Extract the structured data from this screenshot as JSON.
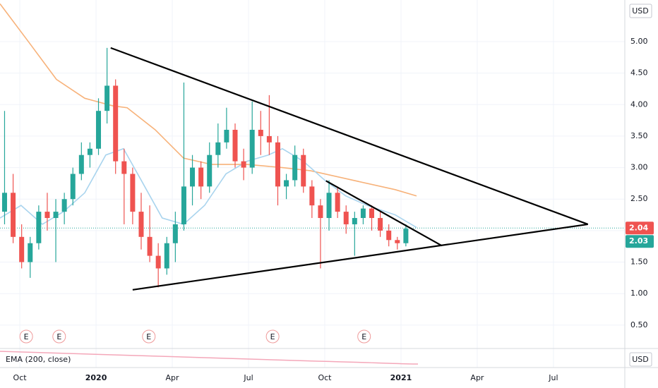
{
  "chart_data": {
    "type": "candlestick",
    "currency": "USD",
    "indicator_label": "EMA (200, close)",
    "up_color": "#26a69a",
    "down_color": "#ef5350",
    "grid": true,
    "xlim": [
      2019.685,
      2021.734
    ],
    "ylim": [
      0.14,
      5.66
    ],
    "xticks": [
      {
        "value": 2019.75,
        "label": "Oct"
      },
      2020,
      {
        "value": 2020.25,
        "label": "Apr"
      },
      {
        "value": 2020.5,
        "label": "Jul"
      },
      {
        "value": 2020.75,
        "label": "Oct"
      },
      2021,
      {
        "value": 2021.25,
        "label": "Apr"
      },
      {
        "value": 2021.5,
        "label": "Jul"
      }
    ],
    "yticks": [
      {
        "value": 0.5,
        "label": "0.50"
      },
      {
        "value": 1,
        "label": "1.00"
      },
      {
        "value": 1.5,
        "label": "1.50"
      },
      {
        "value": 2,
        "label": "2.00"
      },
      {
        "value": 2.5,
        "label": "2.50"
      },
      {
        "value": 3,
        "label": "3.00"
      },
      {
        "value": 3.5,
        "label": "3.50"
      },
      {
        "value": 4,
        "label": "4.00"
      },
      {
        "value": 4.5,
        "label": "4.50"
      },
      {
        "value": 5,
        "label": "5.00"
      }
    ],
    "x": [
      2019.7,
      2019.728,
      2019.756,
      2019.784,
      2019.812,
      2019.84,
      2019.868,
      2019.896,
      2019.924,
      2019.952,
      2019.98,
      2020.008,
      2020.036,
      2020.064,
      2020.092,
      2020.12,
      2020.148,
      2020.176,
      2020.204,
      2020.232,
      2020.26,
      2020.288,
      2020.316,
      2020.344,
      2020.372,
      2020.4,
      2020.428,
      2020.456,
      2020.484,
      2020.512,
      2020.54,
      2020.568,
      2020.596,
      2020.624,
      2020.652,
      2020.68,
      2020.708,
      2020.736,
      2020.764,
      2020.792,
      2020.82,
      2020.848,
      2020.876,
      2020.904,
      2020.932,
      2020.96,
      2020.988,
      2021.016
    ],
    "open": [
      2.3,
      2.6,
      1.9,
      1.5,
      1.8,
      2.3,
      2.2,
      2.3,
      2.5,
      2.9,
      3.2,
      3.3,
      3.9,
      4.3,
      3.1,
      2.9,
      2.3,
      1.9,
      1.6,
      1.4,
      1.8,
      2.1,
      2.7,
      3.0,
      2.7,
      3.2,
      3.4,
      3.6,
      3.1,
      3.0,
      3.6,
      3.5,
      3.4,
      2.7,
      2.8,
      3.2,
      2.7,
      2.4,
      2.2,
      2.6,
      2.3,
      2.1,
      2.2,
      2.35,
      2.2,
      2.0,
      1.85,
      1.8
    ],
    "high": [
      3.9,
      2.9,
      2.1,
      1.9,
      2.4,
      2.6,
      2.5,
      2.6,
      3.0,
      3.4,
      3.4,
      4.1,
      4.9,
      4.4,
      3.3,
      3.0,
      2.6,
      2.4,
      1.8,
      1.9,
      2.3,
      4.35,
      3.2,
      3.1,
      3.4,
      3.7,
      3.95,
      3.7,
      3.3,
      4.05,
      3.9,
      4.15,
      3.5,
      2.9,
      3.35,
      3.3,
      2.8,
      2.5,
      2.8,
      2.7,
      2.4,
      2.3,
      2.4,
      2.4,
      2.3,
      2.1,
      1.9,
      2.1
    ],
    "low": [
      2.1,
      1.8,
      1.4,
      1.25,
      1.7,
      2.0,
      1.5,
      2.1,
      2.4,
      2.8,
      3.0,
      3.2,
      3.7,
      2.9,
      2.1,
      2.1,
      1.7,
      1.5,
      1.1,
      1.3,
      1.5,
      2.0,
      2.4,
      2.5,
      2.6,
      3.0,
      3.3,
      3.0,
      2.8,
      2.9,
      3.2,
      3.2,
      2.4,
      2.5,
      2.7,
      2.6,
      2.2,
      1.4,
      2.0,
      2.2,
      1.95,
      1.6,
      2.1,
      2.0,
      1.9,
      1.75,
      1.7,
      1.75
    ],
    "close": [
      2.6,
      1.9,
      1.5,
      1.8,
      2.3,
      2.2,
      2.3,
      2.5,
      2.9,
      3.2,
      3.3,
      3.9,
      4.3,
      3.1,
      2.9,
      2.3,
      1.9,
      1.6,
      1.4,
      1.8,
      2.1,
      2.7,
      3.0,
      2.7,
      3.2,
      3.4,
      3.6,
      3.1,
      3.0,
      3.6,
      3.5,
      3.4,
      2.7,
      2.8,
      3.2,
      2.7,
      2.4,
      2.2,
      2.6,
      2.3,
      2.1,
      2.2,
      2.35,
      2.2,
      2.0,
      1.85,
      1.8,
      2.03
    ],
    "lines": [
      {
        "color": "#f7b27a",
        "x": [
          2019.685,
          2019.778,
          2019.87,
          2019.963,
          2020.055,
          2020.102,
          2020.194,
          2020.287,
          2020.379,
          2020.495,
          2020.611,
          2020.704,
          2020.842,
          2020.981,
          2021.051
        ],
        "values": [
          5.6,
          5.0,
          4.4,
          4.1,
          3.98,
          3.95,
          3.6,
          3.15,
          3.05,
          3.05,
          3.0,
          2.95,
          2.8,
          2.65,
          2.55
        ]
      },
      {
        "color": "#a9d4ee",
        "x": [
          2019.685,
          2019.754,
          2019.824,
          2019.893,
          2019.963,
          2020.032,
          2020.09,
          2020.148,
          2020.217,
          2020.287,
          2020.356,
          2020.426,
          2020.495,
          2020.565,
          2020.611,
          2020.68,
          2020.75,
          2020.819,
          2020.889,
          2020.981,
          2021.051
        ],
        "values": [
          2.2,
          2.4,
          2.1,
          2.3,
          2.6,
          3.2,
          3.3,
          2.8,
          2.2,
          2.1,
          2.4,
          2.9,
          3.1,
          3.2,
          3.3,
          3.1,
          2.8,
          2.55,
          2.4,
          2.25,
          2.05
        ]
      }
    ],
    "trendlines": [
      {
        "x": [
          2020.048,
          2021.613
        ],
        "values": [
          4.9,
          2.1
        ]
      },
      {
        "x": [
          2020.12,
          2021.613
        ],
        "values": [
          1.06,
          2.1
        ]
      },
      {
        "x": [
          2020.754,
          2021.134
        ],
        "values": [
          2.79,
          1.76
        ]
      }
    ],
    "events": {
      "label": "E",
      "x": [
        2019.771,
        2019.879,
        2020.173,
        2020.579,
        2020.879
      ]
    },
    "price_labels": [
      {
        "value": 2.04,
        "color": "#ef5350"
      },
      {
        "value": 2.03,
        "color": "#26a69a"
      }
    ]
  }
}
